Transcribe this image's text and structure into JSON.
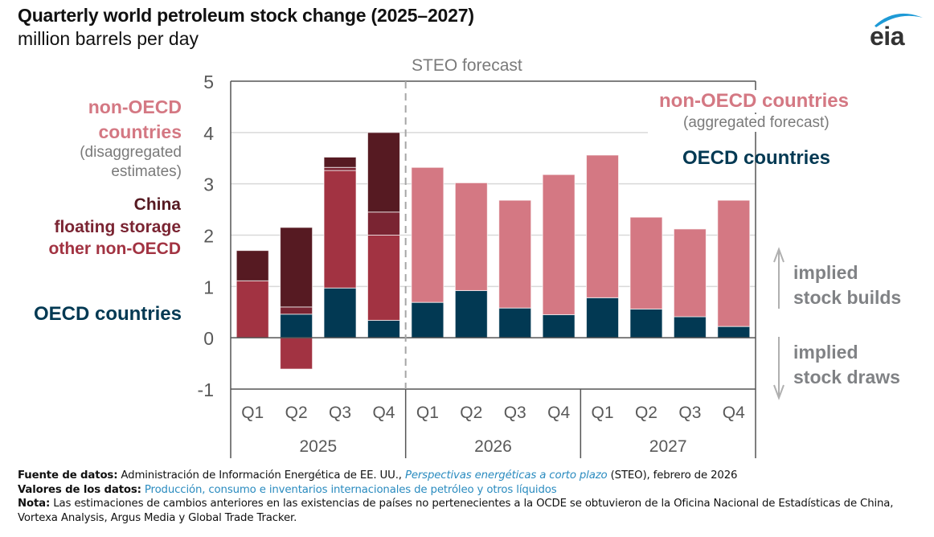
{
  "header": {
    "title": "Quarterly world petroleum stock change (2025–2027)",
    "subtitle": "million barrels per day",
    "logo_text": "eia"
  },
  "chart_data": {
    "type": "bar",
    "stacked": true,
    "title": "Quarterly world petroleum stock change (2025–2027)",
    "ylabel": "million barrels per day",
    "ylim": [
      -1,
      5
    ],
    "yticks": [
      -1,
      0,
      1,
      2,
      3,
      4,
      5
    ],
    "grid": true,
    "forecast_label": "STEO forecast",
    "forecast_starts_at": "2026 Q1",
    "categories": [
      "Q1",
      "Q2",
      "Q3",
      "Q4",
      "Q1",
      "Q2",
      "Q3",
      "Q4",
      "Q1",
      "Q2",
      "Q3",
      "Q4"
    ],
    "years": [
      {
        "label": "2025",
        "quarters": 4
      },
      {
        "label": "2026",
        "quarters": 4
      },
      {
        "label": "2027",
        "quarters": 4
      }
    ],
    "series": [
      {
        "name": "OECD countries",
        "color": "#023953",
        "values": [
          0.0,
          0.46,
          0.97,
          0.34,
          0.69,
          0.92,
          0.58,
          0.45,
          0.78,
          0.56,
          0.41,
          0.22
        ]
      },
      {
        "name": "other non-OECD",
        "color": "#A23342",
        "values": [
          1.11,
          -0.61,
          2.29,
          1.66,
          null,
          null,
          null,
          null,
          null,
          null,
          null,
          null
        ]
      },
      {
        "name": "floating storage",
        "color": "#7A2432",
        "values": [
          0.0,
          0.14,
          0.06,
          0.45,
          null,
          null,
          null,
          null,
          null,
          null,
          null,
          null
        ]
      },
      {
        "name": "China",
        "color": "#561A22",
        "values": [
          0.59,
          1.55,
          0.2,
          1.55,
          null,
          null,
          null,
          null,
          null,
          null,
          null,
          null
        ]
      },
      {
        "name": "non-OECD countries (aggregated forecast)",
        "color": "#D47883",
        "values": [
          null,
          null,
          null,
          null,
          2.63,
          2.1,
          2.1,
          2.73,
          2.78,
          1.79,
          1.71,
          2.46
        ]
      }
    ],
    "totals": [
      1.7,
      2.15,
      3.52,
      4.0,
      3.32,
      3.02,
      2.68,
      3.18,
      3.56,
      2.35,
      2.12,
      2.68
    ],
    "legend": {
      "historical": {
        "nonoecd_line1": "non-OECD",
        "nonoecd_line2": "countries",
        "disagg_line1": "(disaggregated",
        "disagg_line2": "estimates)",
        "china": "China",
        "floating": "floating storage",
        "other": "other non-OECD",
        "oecd": "OECD countries"
      },
      "forecast": {
        "nonoecd": "non-OECD countries",
        "aggregated": "(aggregated forecast)",
        "oecd": "OECD countries"
      }
    },
    "annotations": {
      "builds_line1": "implied",
      "builds_line2": "stock builds",
      "draws_line1": "implied",
      "draws_line2": "stock draws"
    }
  },
  "footer": {
    "source_label": "Fuente de datos:",
    "source_text_1": " Administración de Información Energética de EE. UU., ",
    "source_link": "Perspectivas energéticas a corto plazo",
    "source_text_2": " (STEO), febrero de 2026",
    "values_label": "Valores de los datos:",
    "values_link": " Producción, consumo e inventarios internacionales de petróleo y otros líquidos",
    "note_label": "Nota:",
    "note_text": " Las estimaciones de cambios anteriores en las existencias de países no pertenecientes a la OCDE se obtuvieron de la Oficina Nacional de Estadísticas de China, Vortexa Analysis, Argus Media y Global Trade Tracker."
  }
}
